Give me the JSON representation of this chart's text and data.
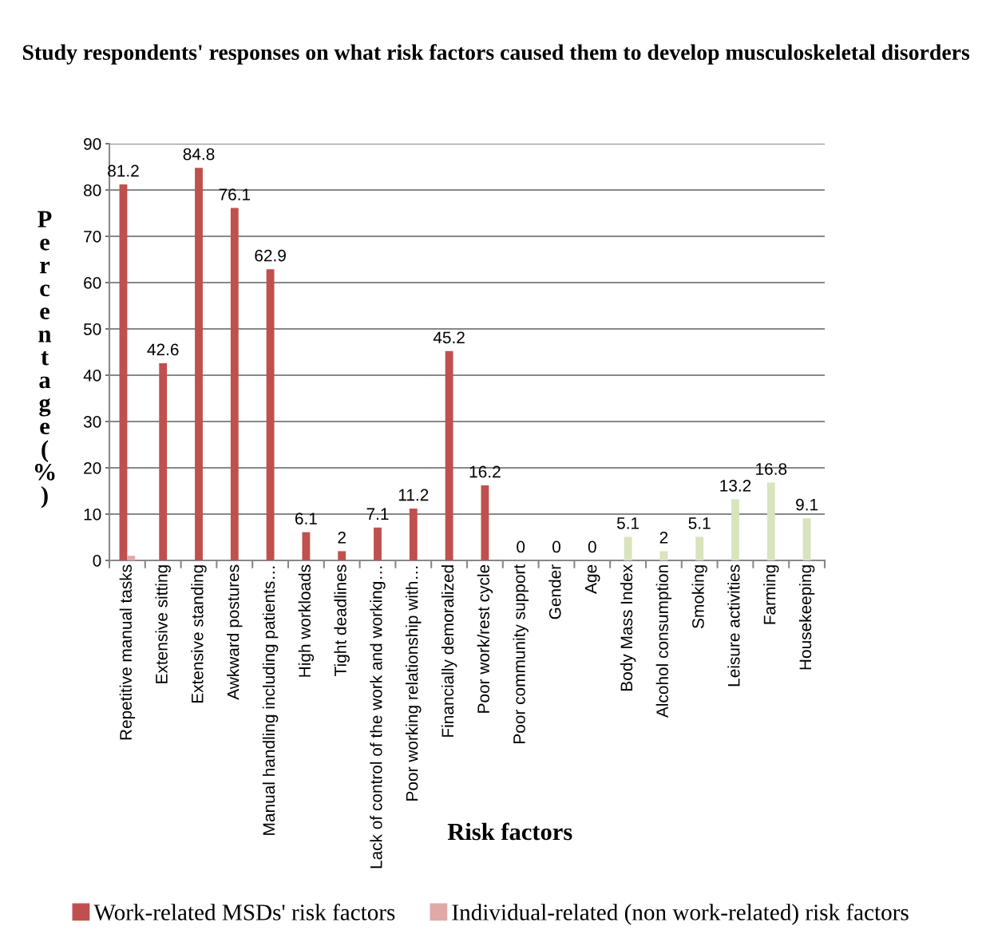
{
  "chart_data": {
    "type": "bar",
    "title": "Study respondents' responses on what risk factors caused them to develop musculoskeletal disorders",
    "xlabel": "Risk factors",
    "ylabel": "Percentage (%)",
    "categories": [
      "Repetitive manual tasks",
      "Extensive sitting",
      "Extensive standing",
      "Awkward postures",
      "Manual handling including patients…",
      "High workloads",
      "Tight deadlines",
      "Lack of control of the work and working…",
      "Poor working relationship with…",
      "Financially demoralized",
      "Poor work/rest cycle",
      "Poor community support",
      "Gender",
      "Age",
      "Body Mass Index",
      "Alcohol consumption",
      "Smoking",
      "Leisure activities",
      "Farming",
      "Housekeeping"
    ],
    "series": [
      {
        "name": "Work-related MSDs' risk factors",
        "color": "#c0504d",
        "values": [
          81.2,
          42.6,
          84.8,
          76.1,
          62.9,
          6.1,
          2,
          7.1,
          11.2,
          45.2,
          16.2,
          0,
          0,
          0,
          null,
          null,
          null,
          null,
          null,
          null
        ],
        "value_labels": [
          "81.2",
          "42.6",
          "84.8",
          "76.1",
          "62.9",
          "6.1",
          "2",
          "7.1",
          "11.2",
          "45.2",
          "16.2",
          "0",
          "0",
          "0",
          null,
          null,
          null,
          null,
          null,
          null
        ]
      },
      {
        "name": "Individual-related (non work-related) risk factors",
        "color": "#e0a9a8",
        "values": [
          1,
          null,
          null,
          null,
          null,
          null,
          null,
          null,
          null,
          null,
          null,
          null,
          null,
          null,
          null,
          null,
          null,
          null,
          null,
          null
        ],
        "value_labels": [
          null,
          null,
          null,
          null,
          null,
          null,
          null,
          null,
          null,
          null,
          null,
          null,
          null,
          null,
          null,
          null,
          null,
          null,
          null,
          null
        ]
      },
      {
        "color": "#d7e4bd",
        "values": [
          null,
          null,
          null,
          null,
          null,
          null,
          null,
          null,
          null,
          null,
          null,
          null,
          null,
          null,
          5.1,
          2,
          5.1,
          13.2,
          16.8,
          9.1
        ],
        "value_labels": [
          null,
          null,
          null,
          null,
          null,
          null,
          null,
          null,
          null,
          null,
          null,
          null,
          null,
          null,
          "5.1",
          "2",
          "5.1",
          "13.2",
          "16.8",
          "9.1"
        ]
      }
    ],
    "ylim": [
      0,
      90
    ],
    "yticks": [
      0,
      10,
      20,
      30,
      40,
      50,
      60,
      70,
      80,
      90
    ],
    "grid": "y",
    "legend": "bottom"
  }
}
